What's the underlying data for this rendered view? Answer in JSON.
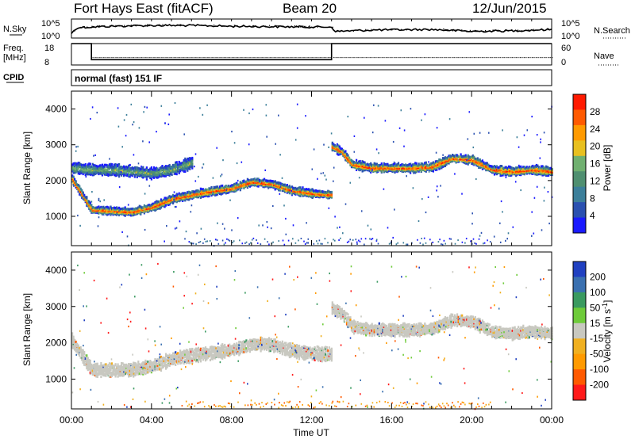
{
  "header": {
    "title": "Fort Hays East (fitACF)",
    "beam": "Beam 20",
    "date": "12/Jun/2015",
    "nsky_label": "N.Sky",
    "nsky_top": "10^5",
    "nsky_bottom": "10^0",
    "nsearch_label": "N.Search",
    "nsearch_top": "10^5",
    "nsearch_bottom": "10^0",
    "freq_label": "Freq.",
    "freq_unit": "[MHz]",
    "freq_top": "18",
    "freq_bottom": "8",
    "nave_label": "Nave",
    "nave_top": "60",
    "nave_bottom": "0",
    "cpid_label": "CPID",
    "cpid_value": "normal (fast) 151 IF"
  },
  "colors": {
    "power_scale": [
      "#1a1aff",
      "#2a50b0",
      "#3c7f9a",
      "#4f8f70",
      "#70b070",
      "#e8c020",
      "#ff9a00",
      "#ff5a00",
      "#ff1a00"
    ],
    "velocity_scale": [
      "#ff1a1a",
      "#ff5a00",
      "#ff9a00",
      "#f0b020",
      "#c8c8c0",
      "#6ecb3a",
      "#3a9a60",
      "#3a70b0",
      "#2040c0"
    ],
    "ground_scatter": "#c8c8c0"
  },
  "chart_data": [
    {
      "type": "line",
      "title": "N.Sky / N.Search",
      "x_ticks_hours": [
        0,
        1,
        2,
        3,
        4,
        5,
        6,
        7,
        8,
        9,
        10,
        11,
        12,
        13,
        14,
        15,
        16,
        17,
        18,
        19,
        20,
        21,
        22,
        23,
        24
      ],
      "series": [
        {
          "name": "N.Sky",
          "x": [
            0,
            0.3,
            2,
            4,
            6,
            8,
            10,
            12,
            13,
            13.2,
            15,
            18,
            20,
            22,
            24
          ],
          "y_level": [
            0.25,
            0.55,
            0.62,
            0.66,
            0.66,
            0.62,
            0.6,
            0.58,
            0.58,
            0.35,
            0.42,
            0.45,
            0.35,
            0.38,
            0.45
          ]
        }
      ]
    },
    {
      "type": "line",
      "title": "Freq. / Nave",
      "series": [
        {
          "name": "Freq.",
          "x": [
            0,
            1,
            1.001,
            13,
            13.001,
            24
          ],
          "y": [
            18,
            18,
            10.5,
            10.5,
            18,
            18
          ]
        },
        {
          "name": "Nave",
          "x": [
            0,
            24
          ],
          "y": [
            12,
            12
          ]
        }
      ],
      "ylim_freq": [
        8,
        18
      ],
      "ylim_nave": [
        0,
        60
      ]
    },
    {
      "type": "heatmap",
      "title": "Power",
      "xlabel": "Time UT",
      "ylabel": "Slant Range [km]",
      "x_ticks": [
        "00:00",
        "04:00",
        "08:00",
        "12:00",
        "16:00",
        "20:00",
        "00:00"
      ],
      "y_ticks": [
        1000,
        2000,
        3000,
        4000
      ],
      "ylim": [
        180,
        4500
      ],
      "colorbar_label": "Power [dB]",
      "colorbar_ticks": [
        "28",
        "24",
        "20",
        "16",
        "12",
        "8",
        "4"
      ],
      "bands": [
        {
          "x": [
            0,
            1,
            2,
            3,
            4,
            5,
            6,
            7,
            8,
            9,
            10,
            11,
            12,
            13
          ],
          "range": [
            2050,
            1180,
            1150,
            1120,
            1250,
            1480,
            1600,
            1700,
            1780,
            1960,
            1900,
            1720,
            1640,
            1600
          ],
          "width": 200,
          "peak_db": 26
        },
        {
          "x": [
            0,
            1,
            2,
            3,
            4,
            5,
            6
          ],
          "range": [
            2350,
            2300,
            2300,
            2250,
            2200,
            2300,
            2500
          ],
          "width": 280,
          "peak_db": 12
        },
        {
          "x": [
            13,
            13.5,
            14,
            15,
            16,
            17,
            18,
            19,
            20,
            21,
            22,
            23,
            24
          ],
          "range": [
            2950,
            2800,
            2450,
            2350,
            2350,
            2350,
            2380,
            2620,
            2580,
            2300,
            2250,
            2300,
            2250
          ],
          "width": 220,
          "peak_db": 24
        }
      ]
    },
    {
      "type": "heatmap",
      "title": "Velocity",
      "xlabel": "Time UT",
      "ylabel": "Slant Range [km]",
      "x_ticks": [
        "00:00",
        "04:00",
        "08:00",
        "12:00",
        "16:00",
        "20:00",
        "00:00"
      ],
      "y_ticks": [
        1000,
        2000,
        3000,
        4000
      ],
      "ylim": [
        180,
        4500
      ],
      "colorbar_label": "Velocity [m s^-1]",
      "colorbar_ticks": [
        "200",
        "100",
        "50",
        "15",
        "-15",
        "-50",
        "-100",
        "-200"
      ],
      "bands": [
        {
          "x": [
            0,
            1,
            2,
            3,
            4,
            5,
            6,
            7,
            8,
            9,
            10,
            11,
            12,
            13
          ],
          "range": [
            2050,
            1250,
            1250,
            1250,
            1350,
            1550,
            1650,
            1720,
            1800,
            1950,
            1950,
            1780,
            1700,
            1680
          ],
          "width": 320,
          "velocity": 0
        },
        {
          "x": [
            13,
            13.5,
            14,
            15,
            16,
            17,
            18,
            19,
            20,
            21,
            22,
            23,
            24
          ],
          "range": [
            2950,
            2800,
            2450,
            2350,
            2350,
            2350,
            2380,
            2620,
            2580,
            2300,
            2250,
            2300,
            2250
          ],
          "width": 300,
          "velocity": 0
        }
      ]
    }
  ],
  "x_axis": {
    "label": "Time UT",
    "ticks": [
      "00:00",
      "04:00",
      "08:00",
      "12:00",
      "16:00",
      "20:00",
      "00:00"
    ]
  }
}
